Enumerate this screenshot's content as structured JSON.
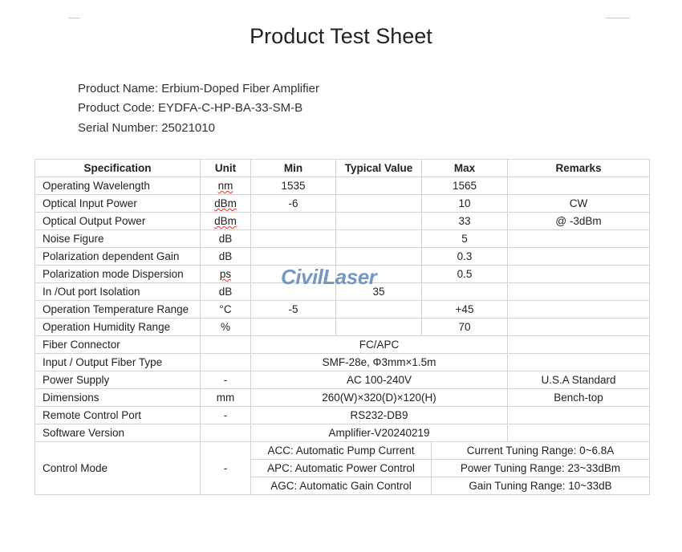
{
  "title": "Product Test Sheet",
  "info": {
    "name": "Product Name: Erbium-Doped Fiber Amplifier",
    "code": "Product Code: EYDFA-C-HP-BA-33-SM-B",
    "serial": "Serial Number: 25021010"
  },
  "watermark": "CivilLaser",
  "headers": [
    "Specification",
    "Unit",
    "Min",
    "Typical Value",
    "Max",
    "Remarks"
  ],
  "rows": [
    [
      "Operating Wavelength",
      "nm",
      "1535",
      "",
      "1565",
      ""
    ],
    [
      "Optical Input Power",
      "dBm",
      "-6",
      "",
      "10",
      "CW"
    ],
    [
      "Optical Output Power",
      "dBm",
      "",
      "",
      "33",
      "@ -3dBm"
    ],
    [
      "Noise Figure",
      "dB",
      "",
      "",
      "5",
      ""
    ],
    [
      "Polarization dependent Gain",
      "dB",
      "",
      "",
      "0.3",
      ""
    ],
    [
      "Polarization mode Dispersion",
      "ps",
      "",
      "",
      "0.5",
      ""
    ],
    [
      "In /Out port Isolation",
      "dB",
      "",
      "35",
      "",
      ""
    ],
    [
      "Operation Temperature Range",
      "°C",
      "-5",
      "",
      "+45",
      ""
    ],
    [
      "Operation Humidity Range",
      "%",
      "",
      "",
      "70",
      ""
    ]
  ],
  "merged_rows": [
    [
      "Fiber Connector",
      "",
      "FC/APC",
      ""
    ],
    [
      "Input / Output Fiber Type",
      "",
      "SMF-28e,  Φ3mm×1.5m",
      ""
    ],
    [
      "Power Supply",
      "-",
      "AC 100-240V",
      "U.S.A Standard"
    ],
    [
      "Dimensions",
      "mm",
      "260(W)×320(D)×120(H)",
      "Bench-top"
    ],
    [
      "Remote Control Port",
      "-",
      "RS232-DB9",
      ""
    ],
    [
      "Software Version",
      "",
      "Amplifier-V20240219",
      ""
    ]
  ],
  "control": {
    "label": "Control Mode",
    "unit": "-",
    "modes": [
      [
        "ACC: Automatic Pump Current",
        "Current Tuning Range: 0~6.8A"
      ],
      [
        "APC: Automatic Power Control",
        "Power Tuning Range: 23~33dBm"
      ],
      [
        "AGC: Automatic Gain Control",
        "Gain Tuning Range: 10~33dB"
      ]
    ]
  }
}
